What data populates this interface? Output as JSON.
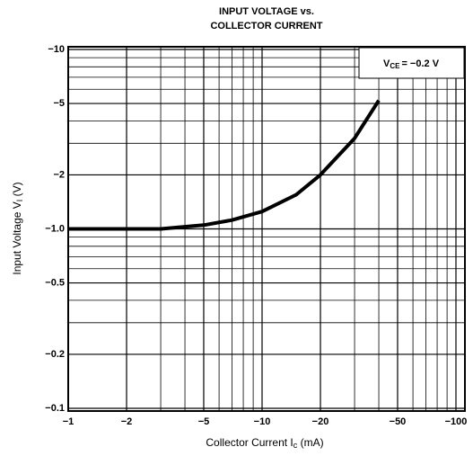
{
  "chart_data": {
    "type": "line",
    "title": [
      "INPUT VOLTAGE vs.",
      "COLLECTOR CURRENT"
    ],
    "xlabel": "Collector Current  I",
    "xlabel_sub": "c",
    "xlabel_unit": " (mA)",
    "ylabel": "Input Voltage  V",
    "ylabel_sub": "I",
    "ylabel_unit": " (V)",
    "annotation": {
      "symbol": "V",
      "subscript": "CE",
      "text": "= −0.2 V"
    },
    "log_x": true,
    "log_y": true,
    "grid": true,
    "color": "#000000",
    "xlim": [
      -1,
      -100
    ],
    "ylim": [
      -0.1,
      -10
    ],
    "xticks": [
      {
        "value": -1,
        "label": "−1"
      },
      {
        "value": -2,
        "label": "−2"
      },
      {
        "value": -5,
        "label": "−5"
      },
      {
        "value": -10,
        "label": "−10"
      },
      {
        "value": -20,
        "label": "−20"
      },
      {
        "value": -50,
        "label": "−50"
      },
      {
        "value": -100,
        "label": "−100"
      }
    ],
    "yticks": [
      {
        "value": -0.1,
        "label": "−0.1"
      },
      {
        "value": -0.2,
        "label": "−0.2"
      },
      {
        "value": -0.5,
        "label": "−0.5"
      },
      {
        "value": -1,
        "label": "−1.0"
      },
      {
        "value": -2,
        "label": "−2"
      },
      {
        "value": -5,
        "label": "−5"
      },
      {
        "value": -10,
        "label": "−10"
      }
    ],
    "x_minor_ticks": [
      -3,
      -4,
      -6,
      -7,
      -8,
      -9,
      -30,
      -40,
      -60,
      -70,
      -80,
      -90
    ],
    "y_minor_ticks": [
      -0.3,
      -0.4,
      -0.6,
      -0.7,
      -0.8,
      -0.9,
      -3,
      -4,
      -6,
      -7,
      -8,
      -9
    ],
    "x": [
      -1,
      -2,
      -3,
      -5,
      -7,
      -10,
      -15,
      -20,
      -30,
      -40
    ],
    "values": [
      -1,
      -1,
      -1,
      -1.05,
      -1.12,
      -1.25,
      -1.55,
      -2,
      -3.2,
      -5.2
    ]
  }
}
